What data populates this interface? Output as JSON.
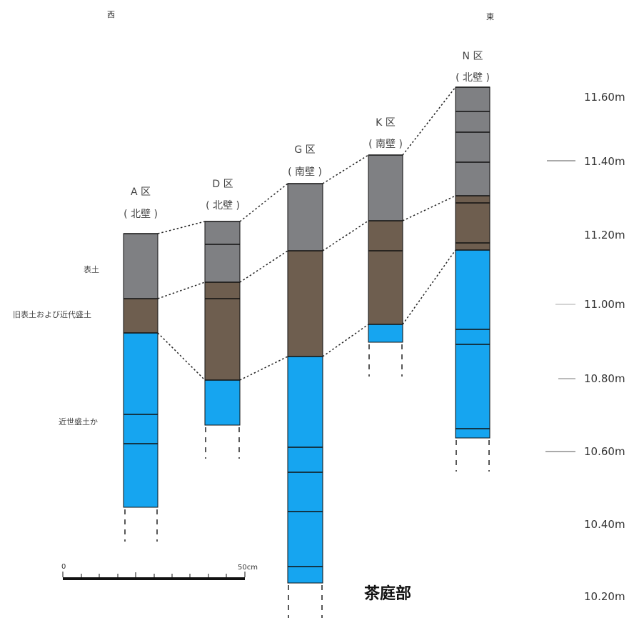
{
  "directions": {
    "west": "西",
    "east": "東"
  },
  "title": "茶庭部",
  "colors": {
    "topsoil": "#7f8083",
    "old_topsoil": "#6e5e4f",
    "early_modern_fill": "#16a5f0"
  },
  "layers": {
    "topsoil": "表土",
    "old_topsoil": "旧表土および近代盛土",
    "early_modern_fill": "近世盛土か"
  },
  "columns": [
    {
      "name": "A 区",
      "wall": "( 北壁 )"
    },
    {
      "name": "D 区",
      "wall": "( 北壁 )"
    },
    {
      "name": "G 区",
      "wall": "( 南壁 )"
    },
    {
      "name": "K 区",
      "wall": "( 南壁 )"
    },
    {
      "name": "N 区",
      "wall": "( 北壁 )"
    }
  ],
  "elevations": [
    "11.60m",
    "11.40m",
    "11.20m",
    "11.00m",
    "10.80m",
    "10.60m",
    "10.40m",
    "10.20m"
  ],
  "scale": {
    "start": "0",
    "end": "50cm"
  }
}
